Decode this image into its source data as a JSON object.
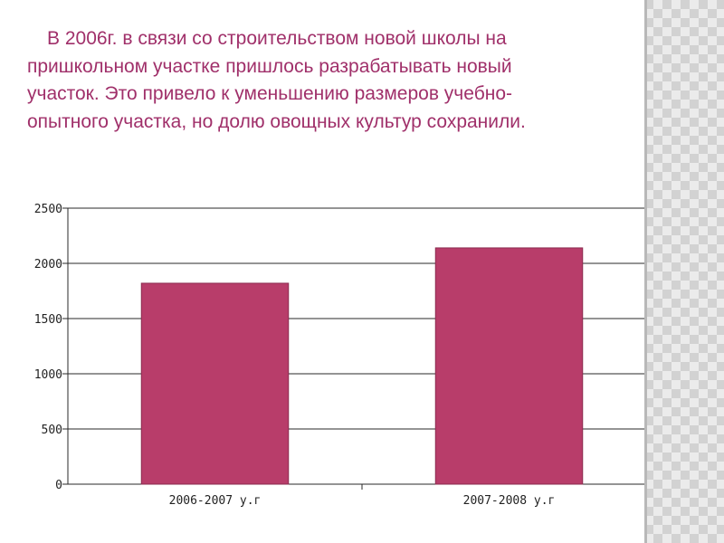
{
  "slide": {
    "text": "В 2006г. в связи со строительством   новой школы на пришкольном участке пришлось разрабатывать новый участок. Это привело к уменьшению размеров учебно-опытного участка, но долю овощных культур сохранили."
  },
  "chart_data": {
    "type": "bar",
    "categories": [
      "2006-2007 у.г",
      "2007-2008 у.г"
    ],
    "values": [
      1820,
      2140
    ],
    "ylim": [
      0,
      2500
    ],
    "yticks": [
      "0",
      "500",
      "1000",
      "1500",
      "2000",
      "2500"
    ],
    "grid": true,
    "bar_color": "#b83d6a",
    "title": "",
    "xlabel": "",
    "ylabel": ""
  },
  "theme": {
    "text_color": "#a0306a",
    "panel_color": "#d2d2d2"
  }
}
